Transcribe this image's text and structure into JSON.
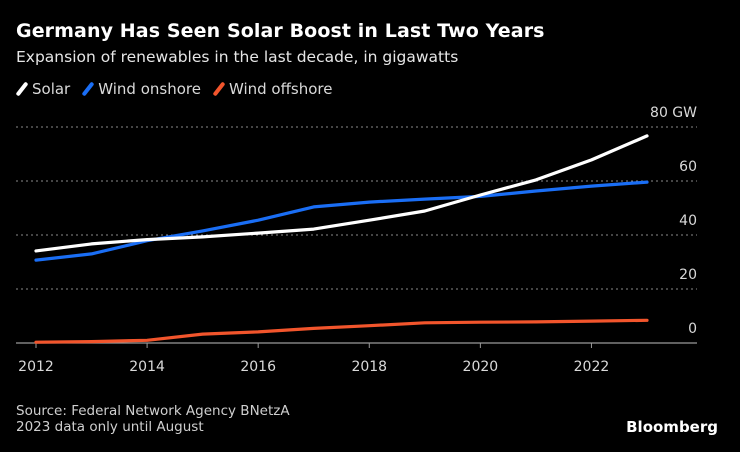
{
  "chart_data": {
    "type": "line",
    "title": "Germany Has Seen Solar Boost in Last Two Years",
    "subtitle": "Expansion of renewables in the last decade, in gigawatts",
    "xlabel": "",
    "ylabel": "GW",
    "x": [
      2012,
      2013,
      2014,
      2015,
      2016,
      2017,
      2018,
      2019,
      2020,
      2021,
      2022,
      2023
    ],
    "xlim": [
      2012,
      2023
    ],
    "ylim": [
      0,
      80
    ],
    "x_ticks": [
      "2012",
      "2014",
      "2016",
      "2018",
      "2020",
      "2022"
    ],
    "x_tick_values": [
      2012,
      2014,
      2016,
      2018,
      2020,
      2022
    ],
    "y_ticks": [
      "80 GW",
      "60",
      "40",
      "20",
      "0"
    ],
    "y_tick_values": [
      80,
      60,
      40,
      20,
      0
    ],
    "grid": true,
    "legend_position": "top-left",
    "series": [
      {
        "name": "Solar",
        "color": "#ffffff",
        "values": [
          34.1,
          36.7,
          38.3,
          39.3,
          40.7,
          42.2,
          45.5,
          48.9,
          54.8,
          60.4,
          67.8,
          76.7
        ]
      },
      {
        "name": "Wind onshore",
        "color": "#1a6ef5",
        "values": [
          30.7,
          33.0,
          37.9,
          41.5,
          45.5,
          50.4,
          52.2,
          53.3,
          54.3,
          56.3,
          58.1,
          59.6
        ]
      },
      {
        "name": "Wind offshore",
        "color": "#f2552c",
        "values": [
          0.3,
          0.5,
          1.0,
          3.3,
          4.1,
          5.4,
          6.4,
          7.5,
          7.7,
          7.8,
          8.1,
          8.4
        ]
      }
    ]
  },
  "footer": {
    "source": "Source: Federal Network Agency BNetzA",
    "note": "2023 data only until August"
  },
  "brand": "Bloomberg"
}
